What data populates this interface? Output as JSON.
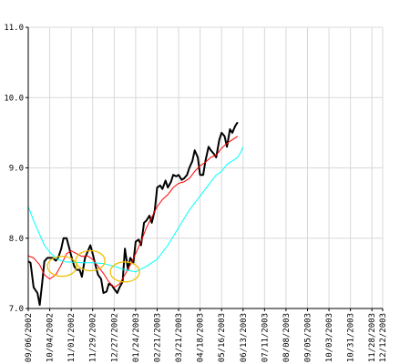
{
  "chart_data": {
    "type": "line",
    "title": "",
    "xlabel": "",
    "ylabel": "",
    "ylim": [
      7.0,
      11.0
    ],
    "y_ticks": [
      "7.0",
      "8.0",
      "9.0",
      "10.0",
      "11.0"
    ],
    "x_tick_labels": [
      "09/06/2002",
      "10/04/2002",
      "11/01/2002",
      "11/29/2002",
      "12/27/2002",
      "01/24/2003",
      "02/21/2003",
      "03/21/2003",
      "04/18/2003",
      "05/16/2003",
      "06/13/2003",
      "07/11/2003",
      "08/08/2003",
      "09/05/2003",
      "10/03/2003",
      "10/31/2003",
      "11/28/2003",
      "12/12/2003"
    ],
    "x_tick_dates": [
      "2002-09-06",
      "2002-10-04",
      "2002-11-01",
      "2002-11-29",
      "2002-12-27",
      "2003-01-24",
      "2003-02-21",
      "2003-03-21",
      "2003-04-18",
      "2003-05-16",
      "2003-06-13",
      "2003-07-11",
      "2003-08-08",
      "2003-09-05",
      "2003-10-03",
      "2003-10-31",
      "2003-11-28",
      "2003-12-12"
    ],
    "grid": true,
    "series": [
      {
        "color": "#000000",
        "points": [
          [
            "2002-09-06",
            7.67
          ],
          [
            "2002-09-09",
            7.65
          ],
          [
            "2002-09-13",
            7.3
          ],
          [
            "2002-09-18",
            7.22
          ],
          [
            "2002-09-21",
            7.05
          ],
          [
            "2002-09-24",
            7.35
          ],
          [
            "2002-09-27",
            7.67
          ],
          [
            "2002-10-01",
            7.72
          ],
          [
            "2002-10-08",
            7.72
          ],
          [
            "2002-10-12",
            7.68
          ],
          [
            "2002-10-15",
            7.72
          ],
          [
            "2002-10-19",
            7.85
          ],
          [
            "2002-10-22",
            8.0
          ],
          [
            "2002-10-26",
            8.0
          ],
          [
            "2002-10-29",
            7.88
          ],
          [
            "2002-11-01",
            7.75
          ],
          [
            "2002-11-05",
            7.6
          ],
          [
            "2002-11-08",
            7.55
          ],
          [
            "2002-11-12",
            7.55
          ],
          [
            "2002-11-15",
            7.45
          ],
          [
            "2002-11-19",
            7.72
          ],
          [
            "2002-11-26",
            7.9
          ],
          [
            "2002-11-29",
            7.78
          ],
          [
            "2002-12-03",
            7.6
          ],
          [
            "2002-12-06",
            7.48
          ],
          [
            "2002-12-10",
            7.42
          ],
          [
            "2002-12-13",
            7.22
          ],
          [
            "2002-12-17",
            7.24
          ],
          [
            "2002-12-20",
            7.35
          ],
          [
            "2002-12-24",
            7.33
          ],
          [
            "2002-12-27",
            7.28
          ],
          [
            "2002-12-31",
            7.22
          ],
          [
            "2003-01-03",
            7.3
          ],
          [
            "2003-01-07",
            7.38
          ],
          [
            "2003-01-10",
            7.85
          ],
          [
            "2003-01-14",
            7.55
          ],
          [
            "2003-01-17",
            7.72
          ],
          [
            "2003-01-21",
            7.65
          ],
          [
            "2003-01-24",
            7.95
          ],
          [
            "2003-01-28",
            7.98
          ],
          [
            "2003-01-31",
            7.9
          ],
          [
            "2003-02-04",
            8.22
          ],
          [
            "2003-02-07",
            8.25
          ],
          [
            "2003-02-11",
            8.32
          ],
          [
            "2003-02-14",
            8.22
          ],
          [
            "2003-02-18",
            8.4
          ],
          [
            "2003-02-21",
            8.72
          ],
          [
            "2003-02-25",
            8.75
          ],
          [
            "2003-02-28",
            8.7
          ],
          [
            "2003-03-04",
            8.82
          ],
          [
            "2003-03-07",
            8.72
          ],
          [
            "2003-03-11",
            8.8
          ],
          [
            "2003-03-14",
            8.9
          ],
          [
            "2003-03-18",
            8.88
          ],
          [
            "2003-03-21",
            8.9
          ],
          [
            "2003-03-25",
            8.83
          ],
          [
            "2003-03-28",
            8.85
          ],
          [
            "2003-04-01",
            8.9
          ],
          [
            "2003-04-04",
            9.0
          ],
          [
            "2003-04-08",
            9.1
          ],
          [
            "2003-04-11",
            9.25
          ],
          [
            "2003-04-15",
            9.15
          ],
          [
            "2003-04-18",
            8.9
          ],
          [
            "2003-04-22",
            8.9
          ],
          [
            "2003-04-25",
            9.1
          ],
          [
            "2003-04-29",
            9.3
          ],
          [
            "2003-05-02",
            9.25
          ],
          [
            "2003-05-06",
            9.2
          ],
          [
            "2003-05-09",
            9.15
          ],
          [
            "2003-05-13",
            9.4
          ],
          [
            "2003-05-16",
            9.5
          ],
          [
            "2003-05-20",
            9.45
          ],
          [
            "2003-05-23",
            9.3
          ],
          [
            "2003-05-27",
            9.55
          ],
          [
            "2003-05-30",
            9.5
          ],
          [
            "2003-06-03",
            9.6
          ],
          [
            "2003-06-06",
            9.65
          ]
        ]
      },
      {
        "color": "#ff0000",
        "points": [
          [
            "2002-09-06",
            7.75
          ],
          [
            "2002-09-13",
            7.72
          ],
          [
            "2002-09-21",
            7.62
          ],
          [
            "2002-09-27",
            7.48
          ],
          [
            "2002-10-04",
            7.42
          ],
          [
            "2002-10-12",
            7.48
          ],
          [
            "2002-10-19",
            7.62
          ],
          [
            "2002-10-26",
            7.78
          ],
          [
            "2002-11-01",
            7.82
          ],
          [
            "2002-11-08",
            7.78
          ],
          [
            "2002-11-15",
            7.74
          ],
          [
            "2002-11-22",
            7.75
          ],
          [
            "2002-11-29",
            7.7
          ],
          [
            "2002-12-06",
            7.6
          ],
          [
            "2002-12-13",
            7.5
          ],
          [
            "2002-12-20",
            7.38
          ],
          [
            "2002-12-27",
            7.3
          ],
          [
            "2003-01-03",
            7.35
          ],
          [
            "2003-01-10",
            7.48
          ],
          [
            "2003-01-17",
            7.62
          ],
          [
            "2003-01-24",
            7.78
          ],
          [
            "2003-01-31",
            7.95
          ],
          [
            "2003-02-07",
            8.15
          ],
          [
            "2003-02-14",
            8.3
          ],
          [
            "2003-02-21",
            8.45
          ],
          [
            "2003-02-28",
            8.55
          ],
          [
            "2003-03-07",
            8.62
          ],
          [
            "2003-03-14",
            8.72
          ],
          [
            "2003-03-21",
            8.78
          ],
          [
            "2003-03-28",
            8.8
          ],
          [
            "2003-04-04",
            8.85
          ],
          [
            "2003-04-11",
            8.95
          ],
          [
            "2003-04-18",
            9.03
          ],
          [
            "2003-04-25",
            9.08
          ],
          [
            "2003-05-02",
            9.15
          ],
          [
            "2003-05-09",
            9.18
          ],
          [
            "2003-05-16",
            9.28
          ],
          [
            "2003-05-23",
            9.35
          ],
          [
            "2003-05-30",
            9.4
          ],
          [
            "2003-06-06",
            9.45
          ]
        ]
      },
      {
        "color": "#00ffff",
        "points": [
          [
            "2002-09-06",
            8.45
          ],
          [
            "2002-09-13",
            8.25
          ],
          [
            "2002-09-21",
            8.05
          ],
          [
            "2002-09-27",
            7.9
          ],
          [
            "2002-10-04",
            7.8
          ],
          [
            "2002-10-12",
            7.72
          ],
          [
            "2002-10-19",
            7.68
          ],
          [
            "2002-10-26",
            7.66
          ],
          [
            "2002-11-01",
            7.66
          ],
          [
            "2002-11-15",
            7.65
          ],
          [
            "2002-11-29",
            7.65
          ],
          [
            "2002-12-13",
            7.64
          ],
          [
            "2002-12-27",
            7.6
          ],
          [
            "2003-01-10",
            7.55
          ],
          [
            "2003-01-24",
            7.52
          ],
          [
            "2003-02-07",
            7.6
          ],
          [
            "2003-02-21",
            7.7
          ],
          [
            "2003-03-07",
            7.9
          ],
          [
            "2003-03-21",
            8.15
          ],
          [
            "2003-04-04",
            8.4
          ],
          [
            "2003-04-18",
            8.6
          ],
          [
            "2003-05-02",
            8.8
          ],
          [
            "2003-05-09",
            8.9
          ],
          [
            "2003-05-16",
            8.95
          ],
          [
            "2003-05-23",
            9.05
          ],
          [
            "2003-05-30",
            9.1
          ],
          [
            "2003-06-06",
            9.15
          ],
          [
            "2003-06-10",
            9.22
          ],
          [
            "2003-06-13",
            9.3
          ]
        ]
      }
    ],
    "annotations": [
      {
        "shape": "ellipse",
        "color": "#f0c000",
        "x": "2002-10-20",
        "y": 7.6
      },
      {
        "shape": "ellipse",
        "color": "#f0c000",
        "x": "2002-11-26",
        "y": 7.68
      },
      {
        "shape": "ellipse",
        "color": "#f0c000",
        "x": "2003-01-10",
        "y": 7.52
      }
    ]
  }
}
